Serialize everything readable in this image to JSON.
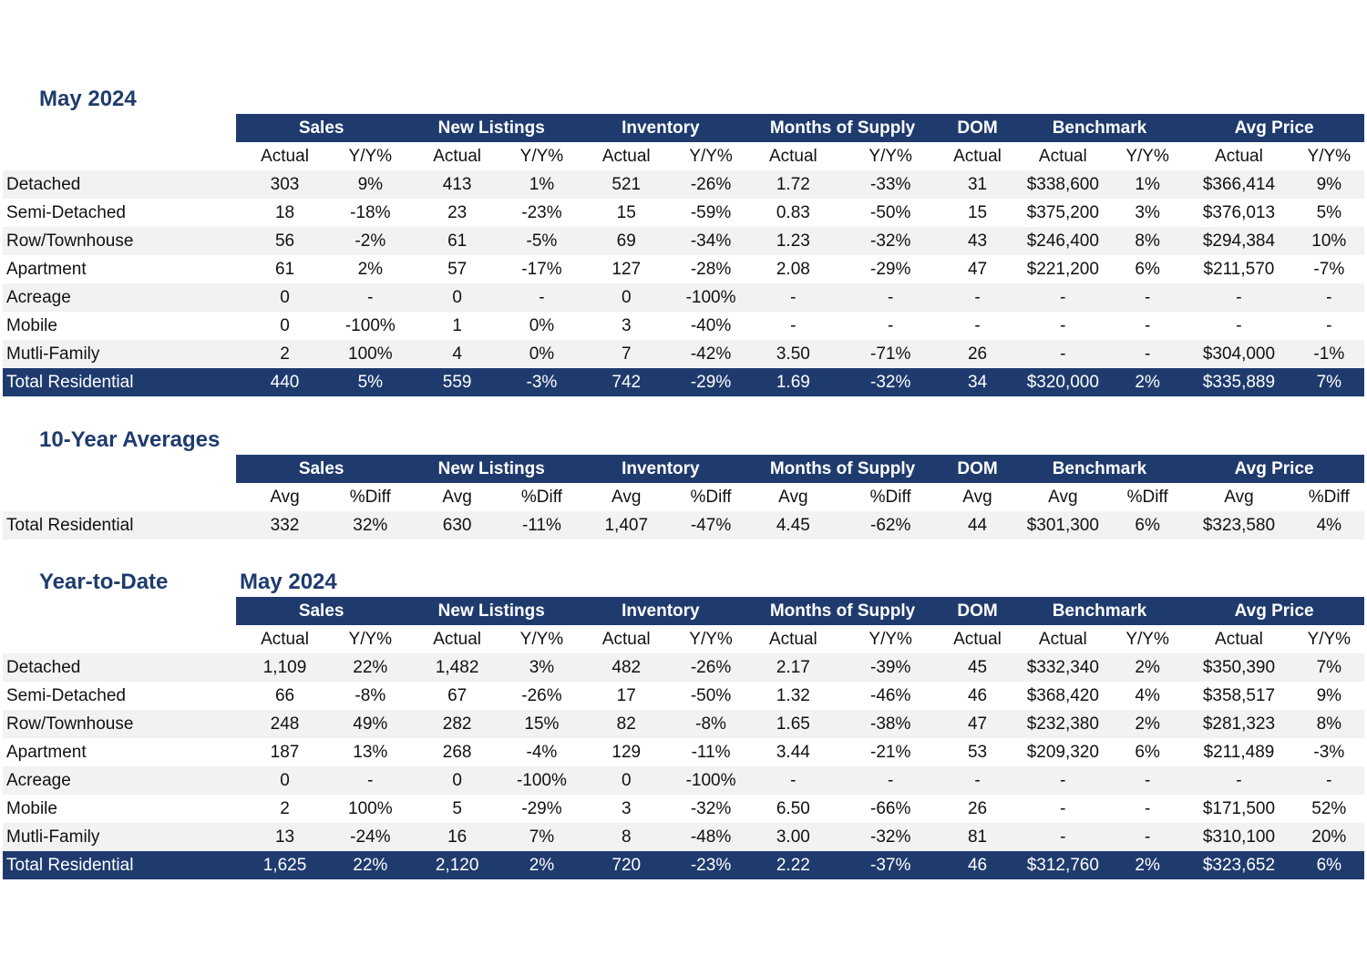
{
  "groups": [
    "Sales",
    "New Listings",
    "Inventory",
    "Months of Supply",
    "DOM",
    "Benchmark",
    "Avg Price"
  ],
  "subheaders_actual": [
    "Actual",
    "Y/Y%",
    "Actual",
    "Y/Y%",
    "Actual",
    "Y/Y%",
    "Actual",
    "Y/Y%",
    "Actual",
    "Actual",
    "Y/Y%",
    "Actual",
    "Y/Y%"
  ],
  "subheaders_avg": [
    "Avg",
    "%Diff",
    "Avg",
    "%Diff",
    "Avg",
    "%Diff",
    "Avg",
    "%Diff",
    "Avg",
    "Avg",
    "%Diff",
    "Avg",
    "%Diff"
  ],
  "monthly": {
    "title": "May 2024",
    "rows": [
      {
        "label": "Detached",
        "values": [
          "303",
          "9%",
          "413",
          "1%",
          "521",
          "-26%",
          "1.72",
          "-33%",
          "31",
          "$338,600",
          "1%",
          "$366,414",
          "9%"
        ]
      },
      {
        "label": "Semi-Detached",
        "values": [
          "18",
          "-18%",
          "23",
          "-23%",
          "15",
          "-59%",
          "0.83",
          "-50%",
          "15",
          "$375,200",
          "3%",
          "$376,013",
          "5%"
        ]
      },
      {
        "label": "Row/Townhouse",
        "values": [
          "56",
          "-2%",
          "61",
          "-5%",
          "69",
          "-34%",
          "1.23",
          "-32%",
          "43",
          "$246,400",
          "8%",
          "$294,384",
          "10%"
        ]
      },
      {
        "label": "Apartment",
        "values": [
          "61",
          "2%",
          "57",
          "-17%",
          "127",
          "-28%",
          "2.08",
          "-29%",
          "47",
          "$221,200",
          "6%",
          "$211,570",
          "-7%"
        ]
      },
      {
        "label": "Acreage",
        "values": [
          "0",
          "-",
          "0",
          "-",
          "0",
          "-100%",
          "-",
          "-",
          "-",
          "-",
          "-",
          "-",
          "-"
        ]
      },
      {
        "label": "Mobile",
        "values": [
          "0",
          "-100%",
          "1",
          "0%",
          "3",
          "-40%",
          "-",
          "-",
          "-",
          "-",
          "-",
          "-",
          "-"
        ]
      },
      {
        "label": "Mutli-Family",
        "values": [
          "2",
          "100%",
          "4",
          "0%",
          "7",
          "-42%",
          "3.50",
          "-71%",
          "26",
          "-",
          "-",
          "$304,000",
          "-1%"
        ]
      }
    ],
    "total": {
      "label": "Total Residential",
      "values": [
        "440",
        "5%",
        "559",
        "-3%",
        "742",
        "-29%",
        "1.69",
        "-32%",
        "34",
        "$320,000",
        "2%",
        "$335,889",
        "7%"
      ]
    }
  },
  "ten_year": {
    "title": "10-Year Averages",
    "rows": [
      {
        "label": "Total Residential",
        "values": [
          "332",
          "32%",
          "630",
          "-11%",
          "1,407",
          "-47%",
          "4.45",
          "-62%",
          "44",
          "$301,300",
          "6%",
          "$323,580",
          "4%"
        ]
      }
    ]
  },
  "ytd": {
    "title": "Year-to-Date",
    "period": "May 2024",
    "rows": [
      {
        "label": "Detached",
        "values": [
          "1,109",
          "22%",
          "1,482",
          "3%",
          "482",
          "-26%",
          "2.17",
          "-39%",
          "45",
          "$332,340",
          "2%",
          "$350,390",
          "7%"
        ]
      },
      {
        "label": "Semi-Detached",
        "values": [
          "66",
          "-8%",
          "67",
          "-26%",
          "17",
          "-50%",
          "1.32",
          "-46%",
          "46",
          "$368,420",
          "4%",
          "$358,517",
          "9%"
        ]
      },
      {
        "label": "Row/Townhouse",
        "values": [
          "248",
          "49%",
          "282",
          "15%",
          "82",
          "-8%",
          "1.65",
          "-38%",
          "47",
          "$232,380",
          "2%",
          "$281,323",
          "8%"
        ]
      },
      {
        "label": "Apartment",
        "values": [
          "187",
          "13%",
          "268",
          "-4%",
          "129",
          "-11%",
          "3.44",
          "-21%",
          "53",
          "$209,320",
          "6%",
          "$211,489",
          "-3%"
        ]
      },
      {
        "label": "Acreage",
        "values": [
          "0",
          "-",
          "0",
          "-100%",
          "0",
          "-100%",
          "-",
          "-",
          "-",
          "-",
          "-",
          "-",
          "-"
        ]
      },
      {
        "label": "Mobile",
        "values": [
          "2",
          "100%",
          "5",
          "-29%",
          "3",
          "-32%",
          "6.50",
          "-66%",
          "26",
          "-",
          "-",
          "$171,500",
          "52%"
        ]
      },
      {
        "label": "Mutli-Family",
        "values": [
          "13",
          "-24%",
          "16",
          "7%",
          "8",
          "-48%",
          "3.00",
          "-32%",
          "81",
          "-",
          "-",
          "$310,100",
          "20%"
        ]
      }
    ],
    "total": {
      "label": "Total Residential",
      "values": [
        "1,625",
        "22%",
        "2,120",
        "2%",
        "720",
        "-23%",
        "2.22",
        "-37%",
        "46",
        "$312,760",
        "2%",
        "$323,652",
        "6%"
      ]
    }
  },
  "colors": {
    "header_bg": "#1f3b6e",
    "header_text": "#ffffff",
    "title_text": "#1f3b6e",
    "stripe": "#f2f2f2"
  }
}
